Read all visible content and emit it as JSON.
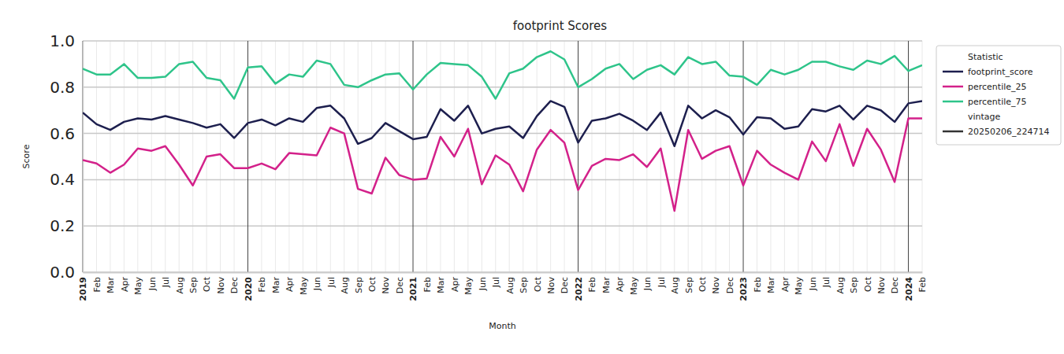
{
  "chart_data": {
    "type": "line",
    "title": "footprint Scores",
    "x_label": "Month",
    "y_label": "Score",
    "categories": [
      "2019",
      "Feb",
      "Mar",
      "Apr",
      "May",
      "Jun",
      "Jul",
      "Aug",
      "Sep",
      "Oct",
      "Nov",
      "Dec",
      "2020",
      "Feb",
      "Mar",
      "Apr",
      "May",
      "Jun",
      "Jul",
      "Aug",
      "Sep",
      "Oct",
      "Nov",
      "Dec",
      "2021",
      "Feb",
      "Mar",
      "Apr",
      "May",
      "Jun",
      "Jul",
      "Aug",
      "Sep",
      "Oct",
      "Nov",
      "Dec",
      "2022",
      "Feb",
      "Mar",
      "Apr",
      "May",
      "Jun",
      "Jul",
      "Aug",
      "Sep",
      "Oct",
      "Nov",
      "Dec",
      "2023",
      "Feb",
      "Mar",
      "Apr",
      "May",
      "Jun",
      "Jul",
      "Aug",
      "Sep",
      "Oct",
      "Nov",
      "Dec",
      "2024",
      "Feb"
    ],
    "series": [
      {
        "name": "footprint_score",
        "color": "#1d1f4e",
        "values": [
          0.69,
          0.64,
          0.615,
          0.65,
          0.665,
          0.66,
          0.675,
          0.66,
          0.645,
          0.625,
          0.64,
          0.58,
          0.645,
          0.66,
          0.635,
          0.665,
          0.65,
          0.71,
          0.72,
          0.665,
          0.555,
          0.58,
          0.645,
          0.61,
          0.575,
          0.585,
          0.705,
          0.655,
          0.72,
          0.6,
          0.62,
          0.63,
          0.58,
          0.675,
          0.74,
          0.715,
          0.56,
          0.655,
          0.665,
          0.685,
          0.655,
          0.615,
          0.69,
          0.545,
          0.72,
          0.665,
          0.7,
          0.67,
          0.595,
          0.67,
          0.665,
          0.62,
          0.63,
          0.705,
          0.695,
          0.72,
          0.66,
          0.72,
          0.7,
          0.65,
          0.73,
          0.74
        ]
      },
      {
        "name": "percentile_25",
        "color": "#d3218a",
        "values": [
          0.485,
          0.47,
          0.43,
          0.465,
          0.535,
          0.525,
          0.545,
          0.465,
          0.375,
          0.5,
          0.51,
          0.45,
          0.45,
          0.47,
          0.445,
          0.515,
          0.51,
          0.505,
          0.625,
          0.6,
          0.36,
          0.34,
          0.495,
          0.42,
          0.4,
          0.405,
          0.585,
          0.5,
          0.62,
          0.38,
          0.505,
          0.465,
          0.35,
          0.53,
          0.615,
          0.56,
          0.355,
          0.46,
          0.49,
          0.485,
          0.51,
          0.455,
          0.535,
          0.265,
          0.615,
          0.49,
          0.525,
          0.545,
          0.375,
          0.525,
          0.465,
          0.43,
          0.4,
          0.565,
          0.48,
          0.64,
          0.46,
          0.62,
          0.53,
          0.39,
          0.665,
          0.665
        ]
      },
      {
        "name": "percentile_75",
        "color": "#2ec48a",
        "values": [
          0.88,
          0.855,
          0.855,
          0.9,
          0.84,
          0.84,
          0.845,
          0.9,
          0.91,
          0.84,
          0.83,
          0.75,
          0.885,
          0.89,
          0.815,
          0.855,
          0.845,
          0.915,
          0.9,
          0.81,
          0.8,
          0.83,
          0.855,
          0.86,
          0.79,
          0.855,
          0.905,
          0.9,
          0.895,
          0.845,
          0.75,
          0.86,
          0.88,
          0.93,
          0.955,
          0.92,
          0.8,
          0.835,
          0.88,
          0.9,
          0.835,
          0.875,
          0.895,
          0.855,
          0.93,
          0.9,
          0.91,
          0.85,
          0.845,
          0.81,
          0.875,
          0.855,
          0.875,
          0.91,
          0.91,
          0.89,
          0.875,
          0.915,
          0.9,
          0.935,
          0.87,
          0.895
        ]
      }
    ],
    "ylim": [
      0,
      1
    ],
    "yticks": [
      {
        "value": 0,
        "label": "0.0"
      },
      0.2,
      0.4,
      0.6,
      0.8,
      {
        "value": 1,
        "label": "1.0"
      }
    ],
    "grid": true,
    "legend": "right",
    "legend_title": "Statistic",
    "vintage": {
      "title": "vintage",
      "label": "20250206_224714",
      "color": "#333333"
    }
  }
}
